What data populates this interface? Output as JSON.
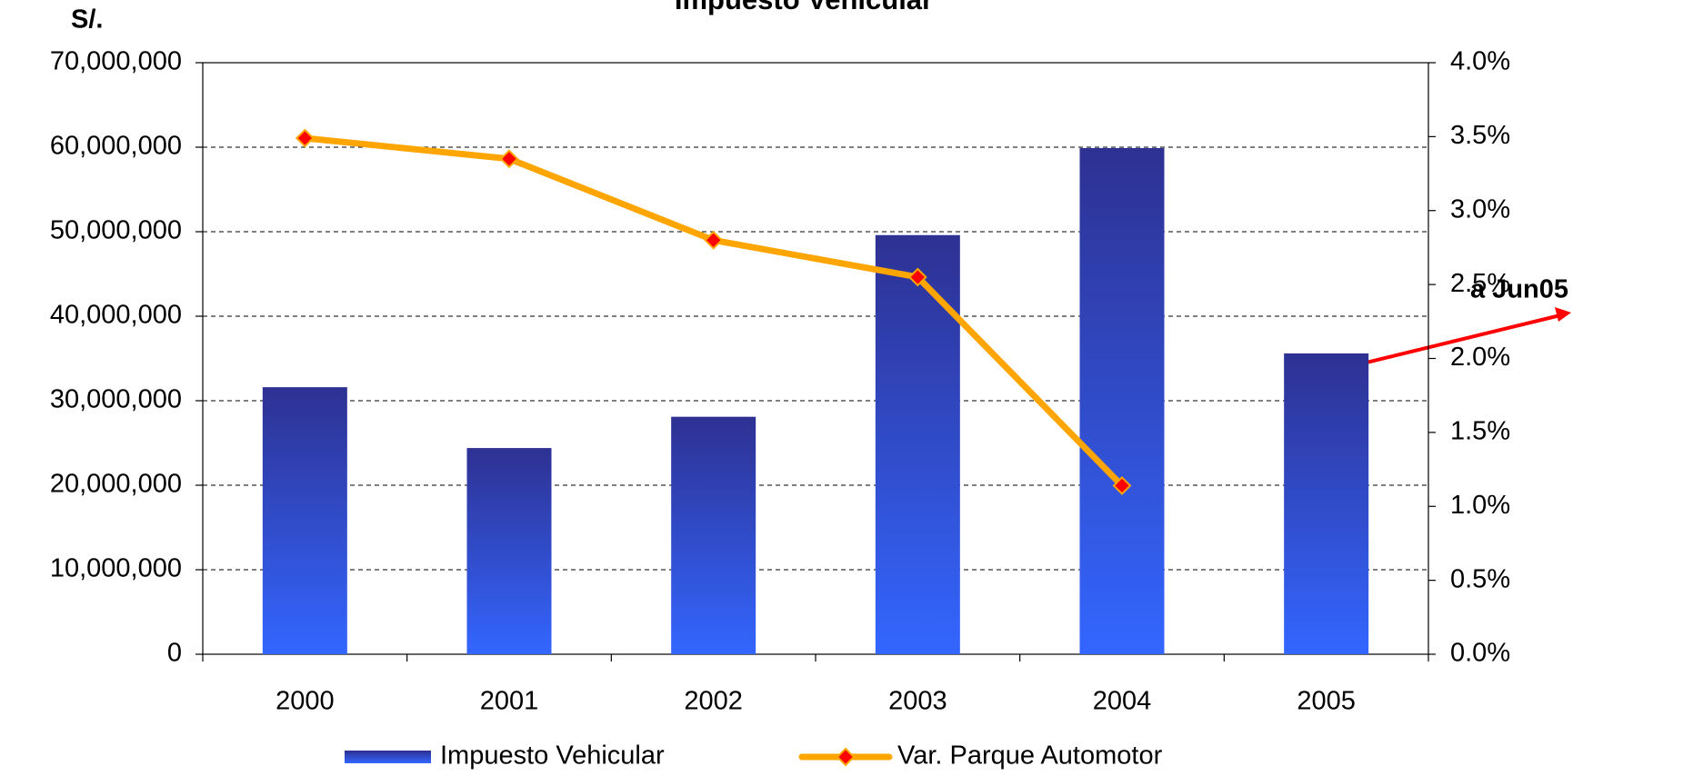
{
  "chart_data": {
    "type": "bar-line",
    "title": "Impuesto Vehicular",
    "y_label": "S/.",
    "annotation": "a Jun05",
    "categories": [
      "2000",
      "2001",
      "2002",
      "2003",
      "2004",
      "2005"
    ],
    "series": [
      {
        "name": "Impuesto Vehicular",
        "type": "bar",
        "color": "#2E3192",
        "color_bottom": "#3366FF",
        "values": [
          31600000,
          24400000,
          28100000,
          49600000,
          59900000,
          35600000
        ]
      },
      {
        "name": "Var. Parque Automotor",
        "type": "line",
        "axis": "y2",
        "color": "#FFA500",
        "marker_color": "#FF0000",
        "values": [
          3.49,
          3.35,
          2.8,
          2.55,
          1.14,
          null
        ]
      }
    ],
    "ylim": [
      0,
      70000000
    ],
    "yticks": [
      0,
      {
        "value": 10000000,
        "label": "10,000,000"
      },
      {
        "value": 20000000,
        "label": "20,000,000"
      },
      {
        "value": 30000000,
        "label": "30,000,000"
      },
      {
        "value": 40000000,
        "label": "40,000,000"
      },
      {
        "value": 50000000,
        "label": "50,000,000"
      },
      {
        "value": 60000000,
        "label": "60,000,000"
      },
      {
        "value": 70000000,
        "label": "70,000,000"
      }
    ],
    "y2lim": [
      0,
      4
    ],
    "y2ticks": [
      {
        "value": 0,
        "label": "0.0%"
      },
      {
        "value": 0.5,
        "label": "0.5%"
      },
      {
        "value": 1,
        "label": "1.0%"
      },
      {
        "value": 1.5,
        "label": "1.5%"
      },
      {
        "value": 2,
        "label": "2.0%"
      },
      {
        "value": 2.5,
        "label": "2.5%"
      },
      {
        "value": 3,
        "label": "3.0%"
      },
      {
        "value": 3.5,
        "label": "3.5%"
      },
      {
        "value": 4,
        "label": "4.0%"
      }
    ],
    "grid": true,
    "legend": "bottom"
  }
}
